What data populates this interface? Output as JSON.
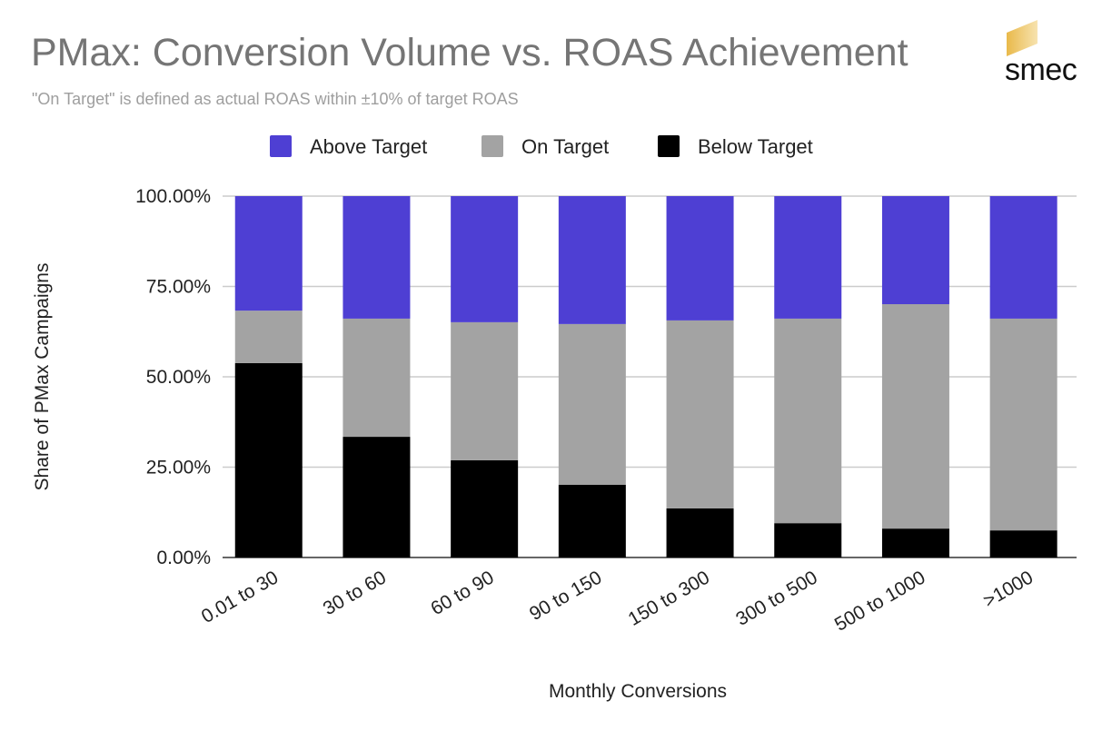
{
  "header": {
    "title": "PMax: Conversion Volume vs. ROAS Achievement",
    "subtitle": "\"On Target\" is defined as actual ROAS within ±10% of target ROAS",
    "logo_text": "smec"
  },
  "chart_data": {
    "type": "bar",
    "stacked": true,
    "title": "PMax: Conversion Volume vs. ROAS Achievement",
    "subtitle": "\"On Target\" is defined as actual ROAS within ±10% of target ROAS",
    "xlabel": "Monthly Conversions",
    "ylabel": "Share of PMax Campaigns",
    "ylim": [
      0,
      100
    ],
    "yticks": [
      "0.00%",
      "25.00%",
      "50.00%",
      "75.00%",
      "100.00%"
    ],
    "grid": true,
    "legend_position": "top",
    "categories": [
      "0.01 to 30",
      "30 to 60",
      "60 to 90",
      "90 to 150",
      "150 to 300",
      "300 to 500",
      "500 to 1000",
      ">1000"
    ],
    "series": [
      {
        "name": "Below Target",
        "color": "#000000",
        "values": [
          53.8,
          33.4,
          26.9,
          20.1,
          13.6,
          9.5,
          8.0,
          7.5
        ]
      },
      {
        "name": "On Target",
        "color": "#a3a3a3",
        "values": [
          14.5,
          32.7,
          38.2,
          44.5,
          52.0,
          56.6,
          62.1,
          58.6
        ]
      },
      {
        "name": "Above Target",
        "color": "#4e3fd3",
        "values": [
          31.7,
          33.9,
          34.9,
          35.4,
          34.4,
          33.9,
          29.9,
          33.9
        ]
      }
    ],
    "legend_order": [
      "Above Target",
      "On Target",
      "Below Target"
    ]
  }
}
